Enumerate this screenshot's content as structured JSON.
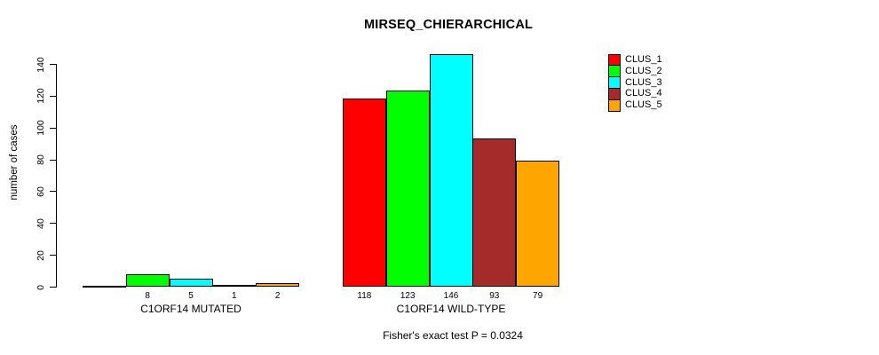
{
  "chart_data": {
    "type": "bar",
    "title": "MIRSEQ_CHIERARCHICAL",
    "ylabel": "number of cases",
    "ylim": [
      0,
      140
    ],
    "yticks": [
      0,
      20,
      40,
      60,
      80,
      100,
      120,
      140
    ],
    "grid": false,
    "legend_position": "right",
    "categories": [
      "C1ORF14 MUTATED",
      "C1ORF14 WILD-TYPE"
    ],
    "series": [
      {
        "name": "CLUS_1",
        "color": "#FF0000",
        "values": [
          0,
          118
        ]
      },
      {
        "name": "CLUS_2",
        "color": "#00FF00",
        "values": [
          8,
          123
        ]
      },
      {
        "name": "CLUS_3",
        "color": "#00FFFF",
        "values": [
          5,
          146
        ]
      },
      {
        "name": "CLUS_4",
        "color": "#A52A2A",
        "values": [
          1,
          93
        ]
      },
      {
        "name": "CLUS_5",
        "color": "#FFA500",
        "values": [
          2,
          79
        ]
      }
    ],
    "bar_value_labels": [
      [
        "",
        "8",
        "5",
        "1",
        "2"
      ],
      [
        "118",
        "123",
        "146",
        "93",
        "79"
      ]
    ],
    "annotation": "Fisher's exact test P = 0.0324"
  }
}
